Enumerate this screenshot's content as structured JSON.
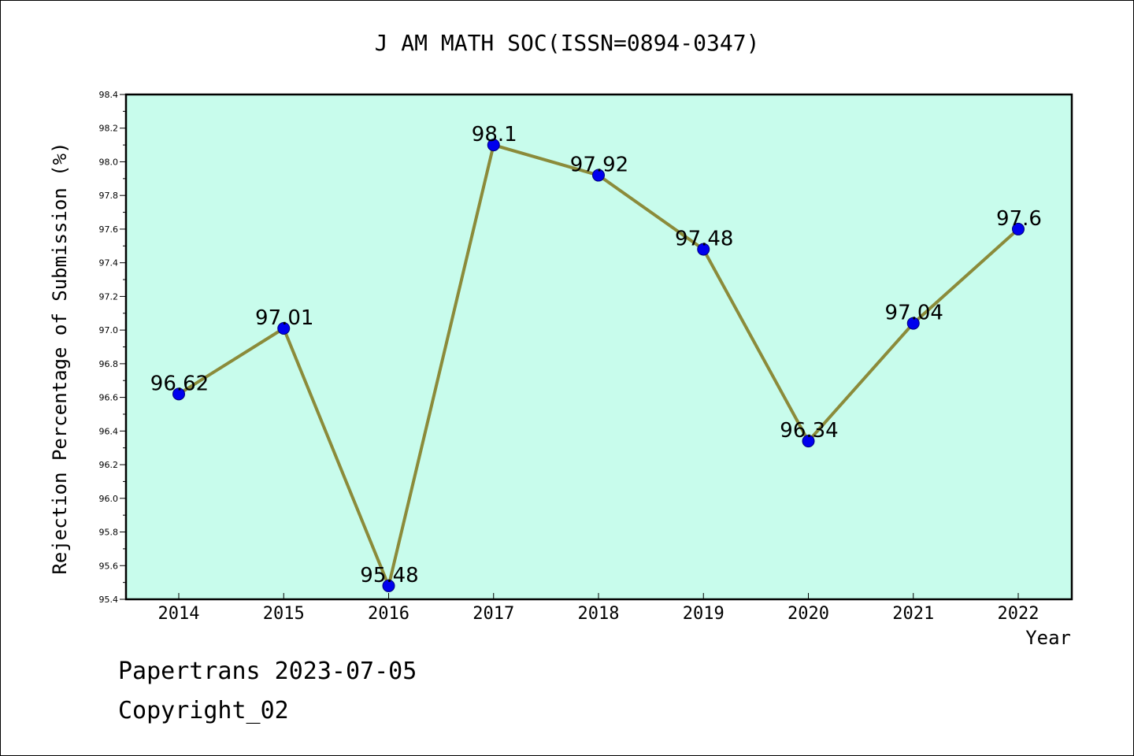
{
  "chart_data": {
    "type": "line",
    "title": "J AM MATH SOC(ISSN=0894-0347)",
    "xlabel": "Year",
    "ylabel": "Rejection Percentage of Submission (%)",
    "categories": [
      "2014",
      "2015",
      "2016",
      "2017",
      "2018",
      "2019",
      "2020",
      "2021",
      "2022"
    ],
    "series": [
      {
        "values": [
          96.62,
          97.01,
          95.48,
          98.1,
          97.92,
          97.48,
          96.34,
          97.04,
          97.6
        ]
      }
    ],
    "data_labels": [
      "96.62",
      "97.01",
      "95.48",
      "98.1",
      "97.92",
      "97.48",
      "96.34",
      "97.04",
      "97.6"
    ],
    "ylim": [
      95.4,
      98.4
    ],
    "yticks": [
      "95.4",
      "95.6",
      "95.8",
      "96.0",
      "96.2",
      "96.4",
      "96.6",
      "96.8",
      "97.0",
      "97.2",
      "97.4",
      "97.6",
      "97.8",
      "98.0",
      "98.2",
      "98.4"
    ],
    "grid": false,
    "colors": {
      "plot_background": "#c8fcec",
      "line": "#8b8b3a",
      "marker": "#0000ee"
    }
  },
  "footer": {
    "date_text": "Papertrans 2023-07-05",
    "copyright_text": "Copyright_02"
  }
}
